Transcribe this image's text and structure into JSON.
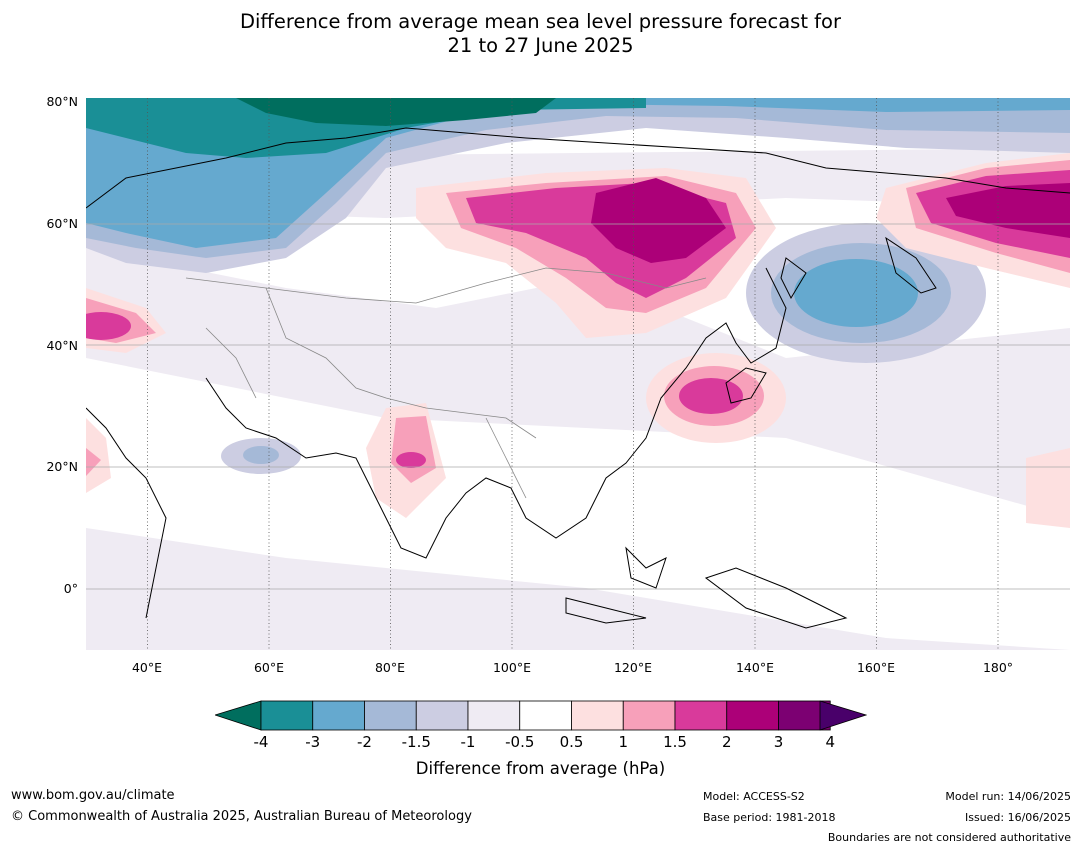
{
  "title": {
    "line1": "Difference from average mean sea level pressure forecast for",
    "line2": "21 to 27 June 2025"
  },
  "map": {
    "lat_labels": [
      "80°N",
      "60°N",
      "40°N",
      "20°N",
      "0°"
    ],
    "lon_labels": [
      "40°E",
      "60°E",
      "80°E",
      "100°E",
      "120°E",
      "140°E",
      "160°E",
      "180°"
    ]
  },
  "colorbar": {
    "ticks": [
      "-4",
      "-3",
      "-2",
      "-1.5",
      "-1",
      "-0.5",
      "0.5",
      "1",
      "1.5",
      "2",
      "3",
      "4"
    ],
    "colors": [
      "#1a8f96",
      "#65a9cf",
      "#a5b9d7",
      "#cccde2",
      "#efebf3",
      "#ffffff",
      "#fde0e0",
      "#f7a0ba",
      "#d93a9b",
      "#ac0078",
      "#7c0072"
    ],
    "low_color": "#006e5e",
    "high_color": "#49006a",
    "label": "Difference from average (hPa)"
  },
  "footer": {
    "website": "www.bom.gov.au/climate",
    "copyright": "© Commonwealth of Australia 2025, Australian Bureau of Meteorology",
    "model": "Model: ACCESS-S2",
    "base_period": "Base period: 1981-2018",
    "model_run": "Model run: 14/06/2025",
    "issued": "Issued: 16/06/2025",
    "disclaimer": "Boundaries are not considered authoritative"
  }
}
